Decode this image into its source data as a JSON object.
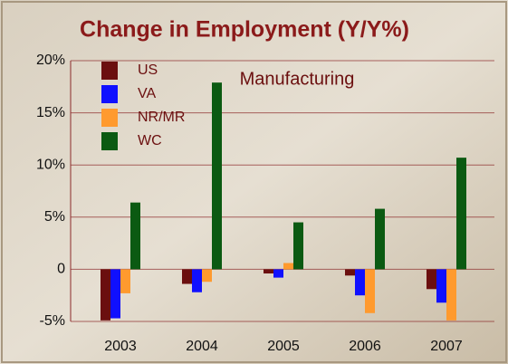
{
  "chart_data": {
    "type": "bar",
    "title": "Change in Employment (Y/Y%)",
    "annotation": "Manufacturing",
    "categories": [
      "2003",
      "2004",
      "2005",
      "2006",
      "2007"
    ],
    "series": [
      {
        "name": "US",
        "color": "#6b0f0f",
        "values": [
          -4.9,
          -1.4,
          -0.4,
          -0.6,
          -1.9
        ]
      },
      {
        "name": "VA",
        "color": "#1010ff",
        "values": [
          -4.7,
          -2.2,
          -0.8,
          -2.5,
          -3.2
        ]
      },
      {
        "name": "NR/MR",
        "color": "#ff9a2e",
        "values": [
          -2.3,
          -1.2,
          0.6,
          -4.2,
          -4.9
        ]
      },
      {
        "name": "WC",
        "color": "#0b5a12",
        "values": [
          6.4,
          17.9,
          4.5,
          5.8,
          10.7
        ]
      }
    ],
    "ylim": [
      -5,
      20
    ],
    "yticks": [
      {
        "value": -5,
        "label": "-5%"
      },
      {
        "value": 0,
        "label": "0"
      },
      {
        "value": 5,
        "label": "5%"
      },
      {
        "value": 10,
        "label": "10%"
      },
      {
        "value": 15,
        "label": "15%"
      },
      {
        "value": 20,
        "label": "20%"
      }
    ],
    "grid": true,
    "legend": "top-left"
  }
}
